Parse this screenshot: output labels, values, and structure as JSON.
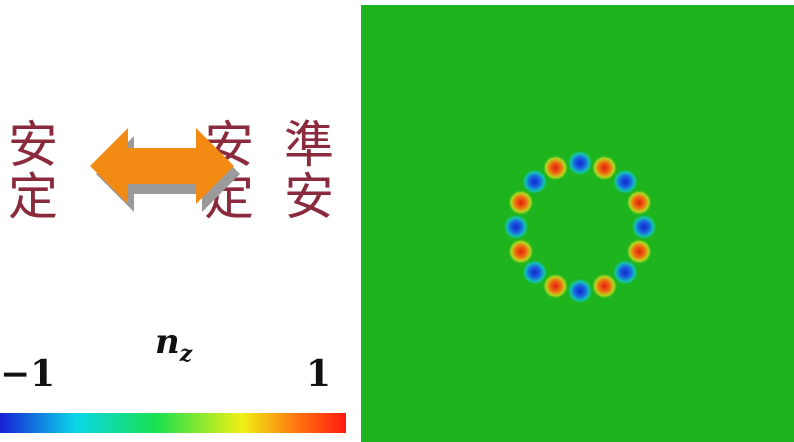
{
  "labels": {
    "left": "安定",
    "middle": "安定",
    "right": "準安"
  },
  "colorbar": {
    "title_symbol": "n",
    "title_subscript": "z",
    "min_label": "−1",
    "max_label": "1",
    "colors": [
      "#1620d8",
      "#0bd7e8",
      "#18e050",
      "#f0f014",
      "#ff7a10",
      "#ff1a10"
    ]
  },
  "arrow": {
    "color": "#f28a14",
    "shadow_color": "#9a9a9a",
    "direction": "bidirectional"
  },
  "field": {
    "background_color": "#1eb41e",
    "ring": {
      "count": 16,
      "pattern": [
        "blue",
        "red",
        "blue",
        "red",
        "blue",
        "red",
        "blue",
        "red",
        "blue",
        "red",
        "blue",
        "red",
        "blue",
        "red",
        "blue",
        "red"
      ],
      "red_color": "#e8321c",
      "blue_color": "#1e3cd8"
    }
  }
}
